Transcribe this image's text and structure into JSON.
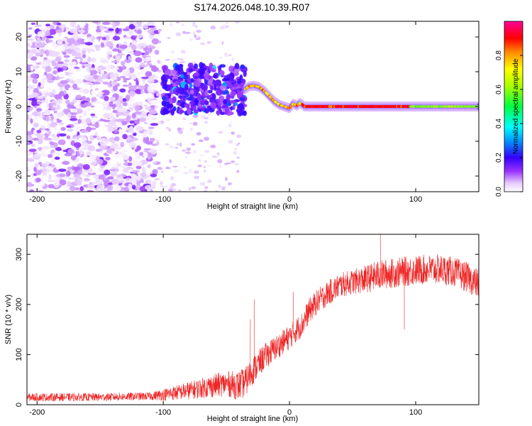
{
  "figure": {
    "title": "S174.2026.048.10.39.R07"
  },
  "chart_data": [
    {
      "type": "heatmap",
      "title": "",
      "xlabel": "Height of straight line (km)",
      "ylabel": "Frequency (Hz)",
      "xlim": [
        -208,
        150
      ],
      "ylim": [
        -24.5,
        24.5
      ],
      "xticks": [
        -200,
        -100,
        0,
        100
      ],
      "yticks": [
        -20,
        -10,
        0,
        10,
        20
      ],
      "colorbar": {
        "label": "Normalized spectral amplitude",
        "range": [
          0,
          1
        ],
        "ticks": [
          "0.0",
          "0.2",
          "0.4",
          "0.6",
          "0.8"
        ],
        "tick_values": [
          0,
          0.2,
          0.4,
          0.6,
          0.8
        ]
      },
      "regions": [
        {
          "name": "scattered low-amplitude noise",
          "x": [
            -208,
            -105
          ],
          "freq": [
            -24.5,
            24.5
          ],
          "amplitude": [
            0.0,
            0.1
          ]
        },
        {
          "name": "sparse noise",
          "x": [
            -105,
            -40
          ],
          "freq": [
            -24.5,
            24.5
          ],
          "amplitude": [
            0.0,
            0.05
          ]
        },
        {
          "name": "dense cluster",
          "x": [
            -100,
            -35
          ],
          "freq": [
            -2,
            12
          ],
          "amplitude": [
            0.08,
            0.25
          ]
        },
        {
          "name": "tonal line",
          "x": [
            -35,
            150
          ],
          "freq": [
            0,
            6
          ],
          "amplitude": [
            0.4,
            1.0
          ]
        }
      ],
      "line_track": {
        "x": [
          -35,
          -32,
          -28,
          -24,
          -20,
          -16,
          -12,
          -8,
          -4,
          0,
          3,
          6,
          8,
          10,
          12,
          15,
          150
        ],
        "freq": [
          5,
          5.8,
          6,
          5.6,
          4.5,
          3,
          1.5,
          0.5,
          0,
          -0.5,
          0.8,
          0.2,
          1,
          0.6,
          0,
          0,
          0
        ],
        "strong_segment_x": [
          10,
          95
        ]
      }
    },
    {
      "type": "line",
      "title": "",
      "xlabel": "Height of straight line (km)",
      "ylabel": "SNR (10 * v/v)",
      "xlim": [
        -208,
        150
      ],
      "ylim": [
        0,
        340
      ],
      "xticks": [
        -200,
        -100,
        0,
        100
      ],
      "yticks": [
        0,
        100,
        200,
        300
      ],
      "series": [
        {
          "name": "SNR",
          "color": "#ee2222",
          "x": [
            -208,
            -190,
            -170,
            -150,
            -130,
            -110,
            -100,
            -90,
            -80,
            -70,
            -60,
            -50,
            -40,
            -35,
            -30,
            -25,
            -20,
            -15,
            -10,
            -5,
            0,
            5,
            10,
            15,
            20,
            25,
            30,
            40,
            50,
            60,
            70,
            80,
            90,
            100,
            110,
            120,
            130,
            140,
            150
          ],
          "values": [
            15,
            15,
            15,
            15,
            16,
            17,
            20,
            24,
            28,
            33,
            38,
            42,
            38,
            45,
            65,
            80,
            95,
            105,
            115,
            125,
            135,
            148,
            160,
            185,
            200,
            212,
            222,
            238,
            245,
            250,
            258,
            262,
            265,
            268,
            270,
            270,
            265,
            255,
            240
          ],
          "noise_amplitude": [
            8,
            8,
            8,
            8,
            8,
            8,
            12,
            15,
            18,
            20,
            24,
            25,
            30,
            30,
            28,
            28,
            26,
            26,
            25,
            25,
            25,
            25,
            25,
            25,
            25,
            25,
            25,
            25,
            25,
            28,
            30,
            30,
            30,
            30,
            30,
            30,
            30,
            30,
            30
          ]
        }
      ],
      "spikes": [
        {
          "x": -28,
          "y": 210
        },
        {
          "x": -31,
          "y": 170
        },
        {
          "x": 3,
          "y": 225
        },
        {
          "x": 72,
          "y": 340
        },
        {
          "x": 91,
          "y": 150
        }
      ]
    }
  ]
}
